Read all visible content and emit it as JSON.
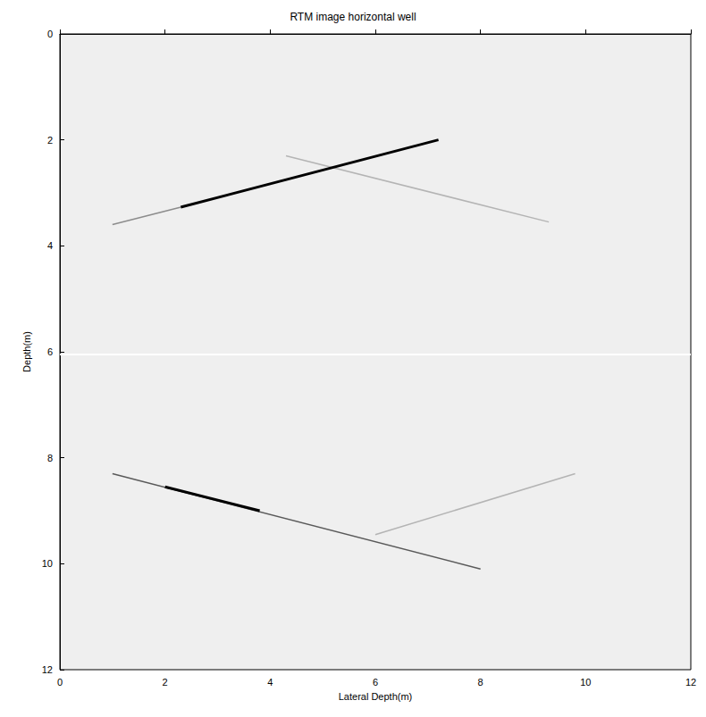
{
  "chart_data": {
    "type": "line",
    "title": "RTM image horizontal well",
    "x_label": "Lateral Depth(m)",
    "y_label": "Depth(m)",
    "xlim": [
      0,
      12
    ],
    "ylim": [
      12,
      0
    ],
    "xticks": [
      0,
      2,
      4,
      6,
      8,
      10,
      12
    ],
    "yticks": [
      0,
      2,
      4,
      6,
      8,
      10,
      12
    ],
    "grid": false,
    "series": [
      {
        "color": "#ffffff",
        "line_style": "solid",
        "x": [
          0,
          12
        ],
        "values": [
          6.05,
          6.05
        ]
      },
      {
        "color": "#b4b4b4",
        "line_style": "solid",
        "x": [
          4.3,
          9.3
        ],
        "values": [
          2.3,
          3.55
        ]
      },
      {
        "color": "#8c8c8c",
        "line_style": "solid",
        "x": [
          1.0,
          2.3
        ],
        "values": [
          3.6,
          3.27
        ]
      },
      {
        "color": "#000000",
        "line_style": "solid",
        "x": [
          2.3,
          7.2
        ],
        "values": [
          3.27,
          2.0
        ]
      },
      {
        "color": "#b4b4b4",
        "line_style": "solid",
        "x": [
          6.0,
          9.8
        ],
        "values": [
          9.45,
          8.3
        ]
      },
      {
        "color": "#5a5a5a",
        "line_style": "solid",
        "x": [
          1.0,
          8.0
        ],
        "values": [
          8.3,
          10.1
        ]
      },
      {
        "color": "#000000",
        "line_style": "solid",
        "x": [
          2.0,
          3.8
        ],
        "values": [
          8.55,
          9.0
        ]
      }
    ]
  }
}
